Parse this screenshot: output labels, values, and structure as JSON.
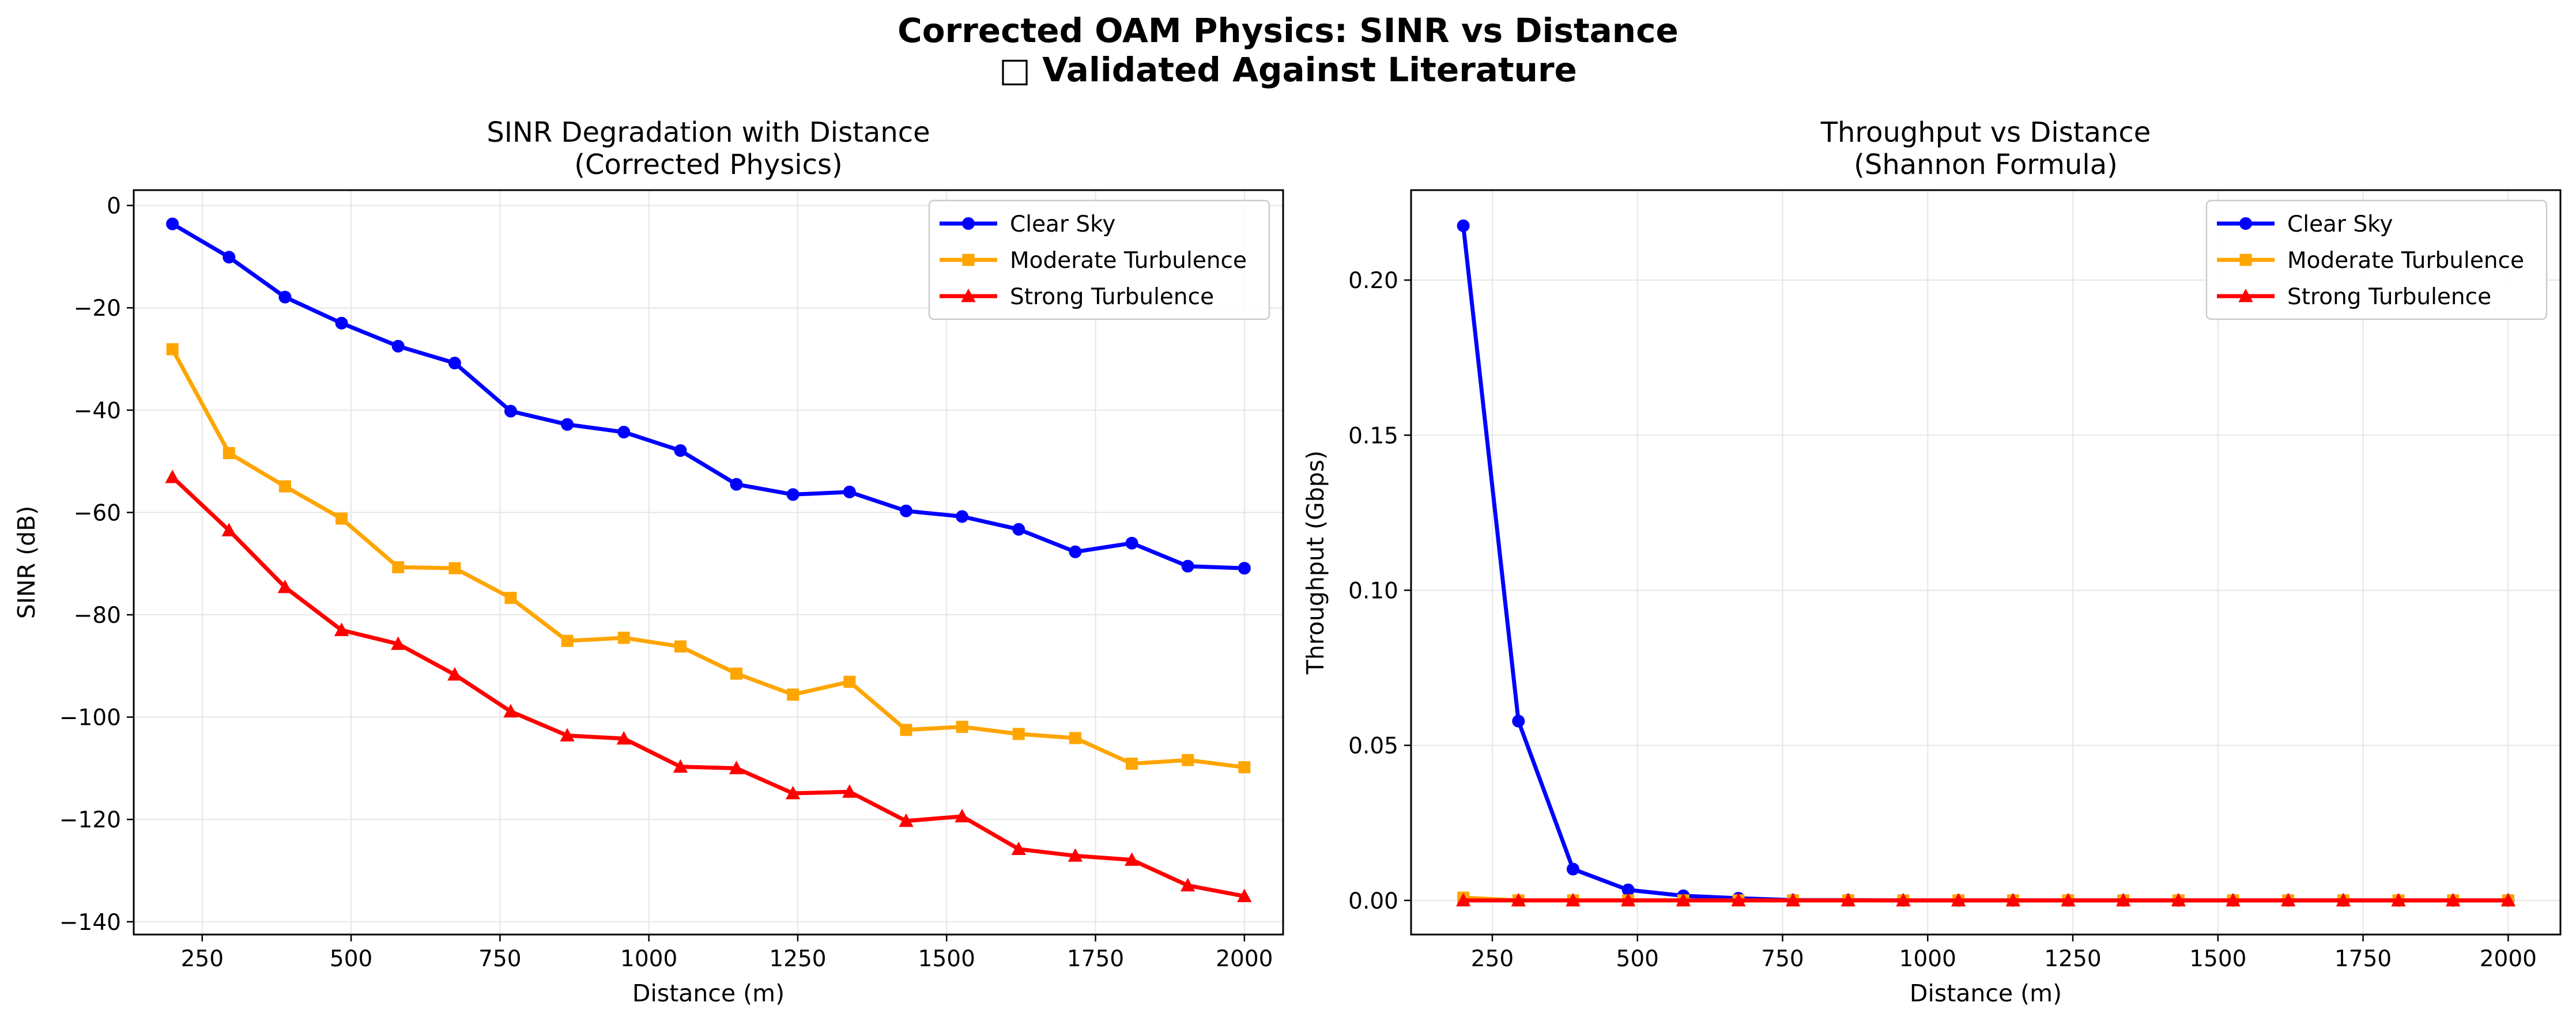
{
  "figure": {
    "title_line1": "Corrected OAM Physics: SINR vs Distance",
    "title_line2": "□ Validated Against Literature"
  },
  "chart_data": [
    {
      "type": "line",
      "title": "SINR Degradation with Distance\n(Corrected Physics)",
      "xlabel": "Distance (m)",
      "ylabel": "SINR (dB)",
      "xlim": [
        135,
        2065
      ],
      "ylim": [
        -142.5,
        3
      ],
      "xticks": [
        250,
        500,
        750,
        1000,
        1250,
        1500,
        1750,
        2000
      ],
      "yticks": [
        0,
        -20,
        -40,
        -60,
        -80,
        -100,
        -120,
        -140
      ],
      "grid": true,
      "legend_position": "upper right",
      "x": [
        200,
        295,
        389,
        484,
        579,
        674,
        768,
        863,
        958,
        1053,
        1147,
        1242,
        1337,
        1432,
        1526,
        1621,
        1716,
        1811,
        1905,
        2000
      ],
      "series": [
        {
          "name": "Clear Sky",
          "color": "#0000ff",
          "marker": "circle",
          "values": [
            -3.6,
            -10.1,
            -17.9,
            -23.0,
            -27.5,
            -30.8,
            -40.2,
            -42.8,
            -44.3,
            -47.9,
            -54.5,
            -56.5,
            -56.0,
            -59.7,
            -60.8,
            -63.3,
            -67.7,
            -66.0,
            -70.5,
            -70.9
          ]
        },
        {
          "name": "Moderate Turbulence",
          "color": "#ffa500",
          "marker": "square",
          "values": [
            -28.1,
            -48.4,
            -54.9,
            -61.2,
            -70.7,
            -70.9,
            -76.7,
            -85.1,
            -84.5,
            -86.2,
            -91.5,
            -95.6,
            -93.1,
            -102.5,
            -101.9,
            -103.3,
            -104.1,
            -109.1,
            -108.4,
            -109.8
          ]
        },
        {
          "name": "Strong Turbulence",
          "color": "#ff0000",
          "marker": "triangle",
          "values": [
            -53.1,
            -63.5,
            -74.6,
            -83.0,
            -85.7,
            -91.7,
            -98.9,
            -103.6,
            -104.2,
            -109.7,
            -110.0,
            -114.9,
            -114.6,
            -120.3,
            -119.4,
            -125.8,
            -127.1,
            -127.9,
            -132.9,
            -135.0
          ]
        }
      ]
    },
    {
      "type": "line",
      "title": "Throughput vs Distance\n(Shannon Formula)",
      "xlabel": "Distance (m)",
      "ylabel": "Throughput (Gbps)",
      "xlim": [
        110,
        2090
      ],
      "ylim": [
        -0.011,
        0.229
      ],
      "xticks": [
        250,
        500,
        750,
        1000,
        1250,
        1500,
        1750,
        2000
      ],
      "yticks": [
        0.0,
        0.05,
        0.1,
        0.15,
        0.2
      ],
      "ytick_labels": [
        "0.00",
        "0.05",
        "0.10",
        "0.15",
        "0.20"
      ],
      "grid": true,
      "legend_position": "upper right",
      "x": [
        200,
        295,
        389,
        484,
        579,
        674,
        768,
        863,
        958,
        1053,
        1147,
        1242,
        1337,
        1432,
        1526,
        1621,
        1716,
        1811,
        1905,
        2000
      ],
      "series": [
        {
          "name": "Clear Sky",
          "color": "#0000ff",
          "marker": "circle",
          "values": [
            0.2175,
            0.0578,
            0.0101,
            0.0034,
            0.0015,
            0.0007,
            0.0001,
            0.0001,
            0.0,
            0.0,
            0.0,
            0.0,
            0.0,
            0.0,
            0.0,
            0.0,
            0.0,
            0.0,
            0.0,
            0.0
          ]
        },
        {
          "name": "Moderate Turbulence",
          "color": "#ffa500",
          "marker": "square",
          "values": [
            0.0009,
            0.0,
            0.0,
            0.0,
            0.0,
            0.0,
            0.0,
            0.0,
            0.0,
            0.0,
            0.0,
            0.0,
            0.0,
            0.0,
            0.0,
            0.0,
            0.0,
            0.0,
            0.0,
            0.0
          ]
        },
        {
          "name": "Strong Turbulence",
          "color": "#ff0000",
          "marker": "triangle",
          "values": [
            0.0,
            0.0,
            0.0,
            0.0,
            0.0,
            0.0,
            0.0,
            0.0,
            0.0,
            0.0,
            0.0,
            0.0,
            0.0,
            0.0,
            0.0,
            0.0,
            0.0,
            0.0,
            0.0,
            0.0
          ]
        }
      ]
    }
  ]
}
